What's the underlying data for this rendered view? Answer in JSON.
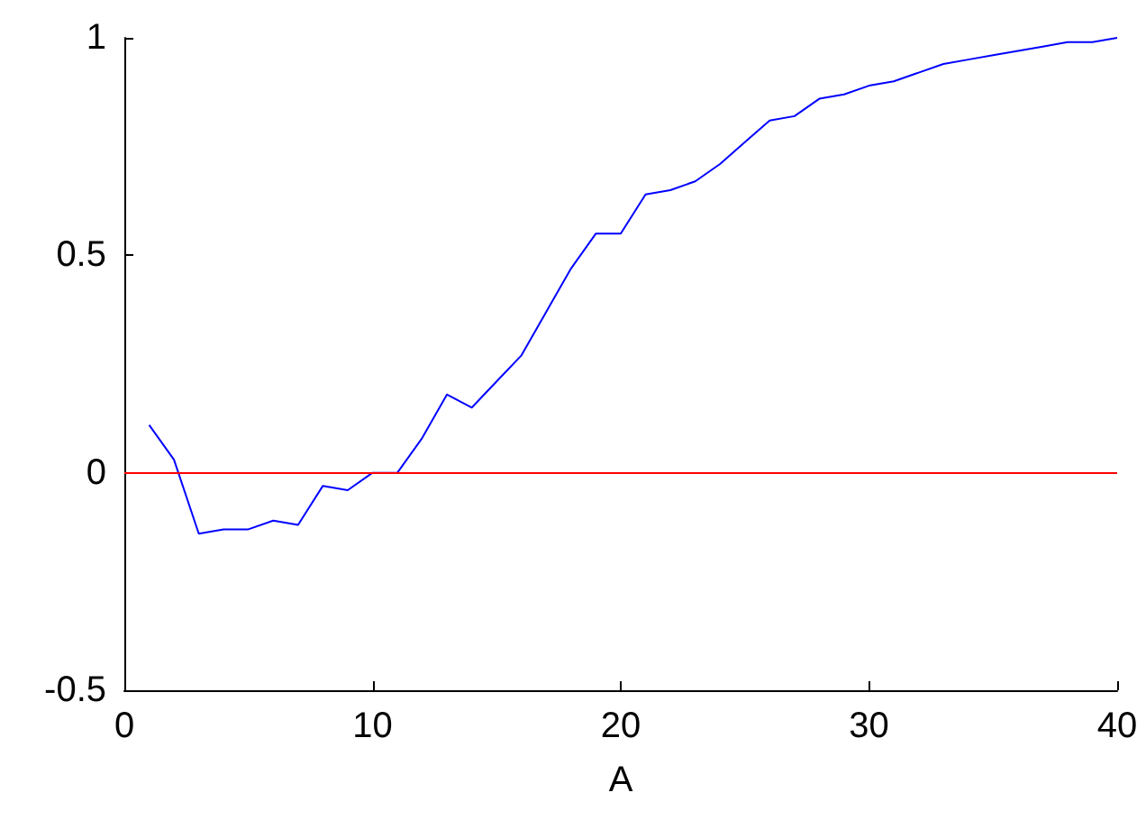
{
  "chart_data": {
    "type": "line",
    "xlabel": "A",
    "x": [
      1,
      2,
      3,
      4,
      5,
      6,
      7,
      8,
      9,
      10,
      11,
      12,
      13,
      14,
      15,
      16,
      17,
      18,
      19,
      20,
      21,
      22,
      23,
      24,
      25,
      26,
      27,
      28,
      29,
      30,
      31,
      32,
      33,
      34,
      35,
      36,
      37,
      38,
      39,
      40
    ],
    "series": [
      {
        "color": "#0000ff",
        "values": [
          0.11,
          0.03,
          -0.14,
          -0.13,
          -0.13,
          -0.11,
          -0.12,
          -0.03,
          -0.04,
          0.0,
          0.0,
          0.08,
          0.18,
          0.15,
          0.21,
          0.27,
          0.37,
          0.47,
          0.55,
          0.55,
          0.64,
          0.65,
          0.67,
          0.71,
          0.76,
          0.81,
          0.82,
          0.86,
          0.87,
          0.89,
          0.9,
          0.92,
          0.94,
          0.95,
          0.96,
          0.97,
          0.98,
          0.99,
          0.99,
          1.0
        ]
      }
    ],
    "ref_lines": [
      {
        "axis": "y",
        "value": 0,
        "color": "#ff0000"
      }
    ],
    "xlim": [
      0,
      40
    ],
    "xticks": [
      0,
      10,
      20,
      30,
      40
    ],
    "ylim": [
      -0.5,
      1
    ],
    "yticks": [
      -0.5,
      0,
      0.5,
      1
    ],
    "grid": false,
    "marker": "none",
    "line_style": "solid"
  }
}
